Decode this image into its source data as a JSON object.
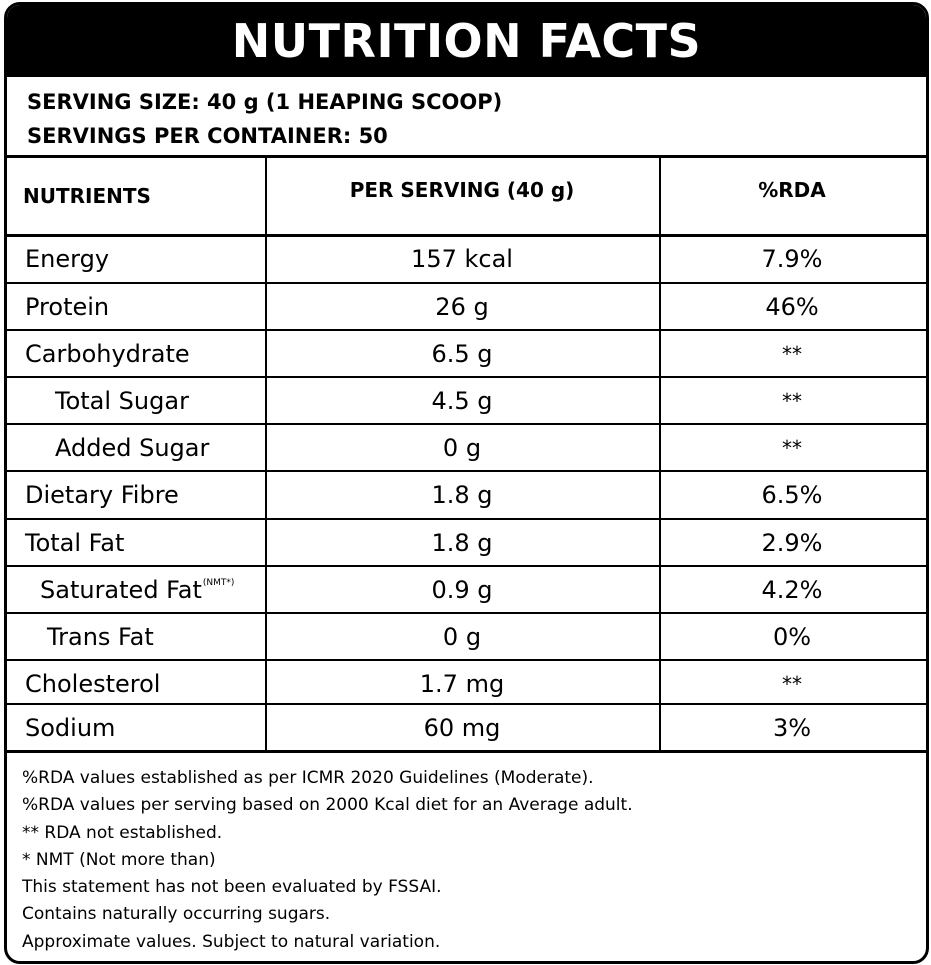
{
  "title": "NUTRITION FACTS",
  "serving_size": "SERVING SIZE: 40 g (1 HEAPING SCOOP)",
  "servings_per_container": "SERVINGS PER CONTAINER: 50",
  "headers": {
    "nutrients": "NUTRIENTS",
    "per_serving": "PER SERVING (40 g)",
    "rda": "%RDA"
  },
  "rows": [
    {
      "name": "Energy",
      "serving": "157 kcal",
      "rda": "7.9%"
    },
    {
      "name": "Protein",
      "serving": "26 g",
      "rda": "46%"
    },
    {
      "name": "Carbohydrate",
      "serving": "6.5 g",
      "rda": "**"
    },
    {
      "name": "Total Sugar",
      "serving": "4.5 g",
      "rda": "**"
    },
    {
      "name": "Added Sugar",
      "serving": "0 g",
      "rda": "**"
    },
    {
      "name": "Dietary Fibre",
      "serving": "1.8 g",
      "rda": "6.5%"
    },
    {
      "name": "Total Fat",
      "serving": "1.8 g",
      "rda": "2.9%"
    },
    {
      "name": "Saturated Fat",
      "name_sup": "(NMT*)",
      "serving": "0.9 g",
      "rda": "4.2%"
    },
    {
      "name": "Trans Fat",
      "serving": "0 g",
      "rda": "0%"
    },
    {
      "name": "Cholesterol",
      "serving": "1.7 mg",
      "rda": "**"
    },
    {
      "name": "Sodium",
      "serving": "60 mg",
      "rda": "3%"
    }
  ],
  "footnotes": [
    "%RDA values established as per ICMR 2020 Guidelines (Moderate).",
    "%RDA values per serving based on 2000 Kcal diet  for an Average adult.",
    "** RDA not established.",
    "* NMT (Not more than)",
    "This statement has not been evaluated by FSSAI.",
    "Contains naturally occurring sugars.",
    "Approximate values. Subject to natural variation."
  ]
}
